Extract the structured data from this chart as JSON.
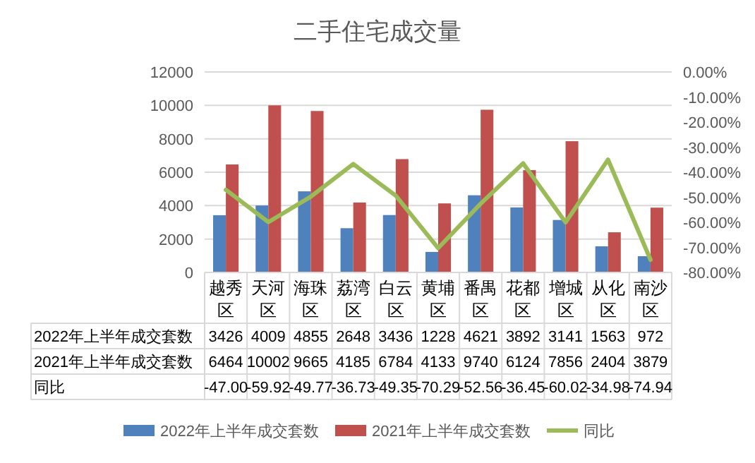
{
  "chart_data": {
    "type": "bar",
    "title": "二手住宅成交量",
    "categories": [
      "越秀区",
      "天河区",
      "海珠区",
      "荔湾区",
      "白云区",
      "黄埔区",
      "番禺区",
      "花都区",
      "增城区",
      "从化区",
      "南沙区"
    ],
    "series": [
      {
        "name": "2022年上半年成交套数",
        "color": "#4f81bd",
        "values": [
          3426,
          4009,
          4855,
          2648,
          3436,
          1228,
          4621,
          3892,
          3141,
          1563,
          972
        ],
        "value_labels": [
          "3426",
          "4009",
          "4855",
          "2648",
          "3436",
          "1228",
          "4621",
          "3892",
          "3141",
          "1563",
          "972"
        ]
      },
      {
        "name": "2021年上半年成交套数",
        "color": "#c0504d",
        "values": [
          6464,
          10002,
          9665,
          4185,
          6784,
          4133,
          9740,
          6124,
          7856,
          2404,
          3879
        ],
        "value_labels": [
          "6464",
          "10002",
          "9665",
          "4185",
          "6784",
          "4133",
          "9740",
          "6124",
          "7856",
          "2404",
          "3879"
        ]
      },
      {
        "name": "同比",
        "type": "line",
        "axis": "y2",
        "color": "#9bbb59",
        "values": [
          -47.0,
          -59.92,
          -49.77,
          -36.73,
          -49.35,
          -70.29,
          -52.56,
          -36.45,
          -60.02,
          -34.98,
          -74.94
        ],
        "value_labels": [
          "-47.00",
          "-59.92",
          "-49.77",
          "-36.73",
          "-49.35",
          "-70.29",
          "-52.56",
          "-36.45",
          "-60.02",
          "-34.98",
          "-74.94"
        ]
      }
    ],
    "ylim": [
      0,
      12000
    ],
    "yticks": [
      0,
      2000,
      4000,
      6000,
      8000,
      10000,
      12000
    ],
    "y2lim": [
      -80,
      0
    ],
    "y2ticks": [
      {
        "value": 0,
        "label": "0.00%"
      },
      {
        "value": -10,
        "label": "-10.00%"
      },
      {
        "value": -20,
        "label": "-20.00%"
      },
      {
        "value": -30,
        "label": "-30.00%"
      },
      {
        "value": -40,
        "label": "-40.00%"
      },
      {
        "value": -50,
        "label": "-50.00%"
      },
      {
        "value": -60,
        "label": "-60.00%"
      },
      {
        "value": -70,
        "label": "-70.00%"
      },
      {
        "value": -80,
        "label": "-80.00%"
      }
    ],
    "grid": "y",
    "legend": "bottom",
    "marker": "none"
  }
}
